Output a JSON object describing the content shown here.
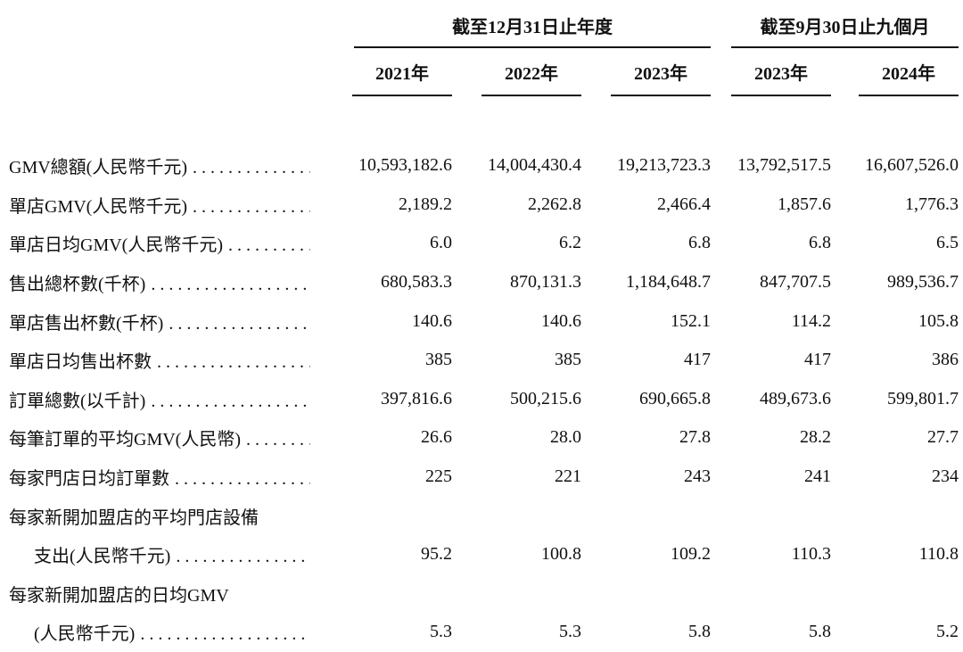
{
  "colors": {
    "background": "#ffffff",
    "text": "#111111"
  },
  "table": {
    "col_groups": [
      {
        "label": "截至12月31日止年度",
        "years": [
          "2021年",
          "2022年",
          "2023年"
        ]
      },
      {
        "label": "截至9月30日止九個月",
        "years": [
          "2023年",
          "2024年"
        ]
      }
    ],
    "rows": [
      {
        "label": "GMV總額(人民幣千元)",
        "values": [
          "10,593,182.6",
          "14,004,430.4",
          "19,213,723.3",
          "13,792,517.5",
          "16,607,526.0"
        ]
      },
      {
        "label": "單店GMV(人民幣千元)",
        "values": [
          "2,189.2",
          "2,262.8",
          "2,466.4",
          "1,857.6",
          "1,776.3"
        ]
      },
      {
        "label": "單店日均GMV(人民幣千元)",
        "values": [
          "6.0",
          "6.2",
          "6.8",
          "6.8",
          "6.5"
        ]
      },
      {
        "label": "售出總杯數(千杯)",
        "values": [
          "680,583.3",
          "870,131.3",
          "1,184,648.7",
          "847,707.5",
          "989,536.7"
        ]
      },
      {
        "label": "單店售出杯數(千杯)",
        "values": [
          "140.6",
          "140.6",
          "152.1",
          "114.2",
          "105.8"
        ]
      },
      {
        "label": "單店日均售出杯數",
        "values": [
          "385",
          "385",
          "417",
          "417",
          "386"
        ]
      },
      {
        "label": "訂單總數(以千計)",
        "values": [
          "397,816.6",
          "500,215.6",
          "690,665.8",
          "489,673.6",
          "599,801.7"
        ]
      },
      {
        "label": "每筆訂單的平均GMV(人民幣)",
        "values": [
          "26.6",
          "28.0",
          "27.8",
          "28.2",
          "27.7"
        ]
      },
      {
        "label": "每家門店日均訂單數",
        "values": [
          "225",
          "221",
          "243",
          "241",
          "234"
        ]
      },
      {
        "label_line1": "每家新開加盟店的平均門店設備",
        "label_line2": "支出(人民幣千元)",
        "values": [
          "95.2",
          "100.8",
          "109.2",
          "110.3",
          "110.8"
        ]
      },
      {
        "label_line1": "每家新開加盟店的日均GMV",
        "label_line2": "(人民幣千元)",
        "values": [
          "5.3",
          "5.3",
          "5.8",
          "5.8",
          "5.2"
        ]
      }
    ]
  }
}
